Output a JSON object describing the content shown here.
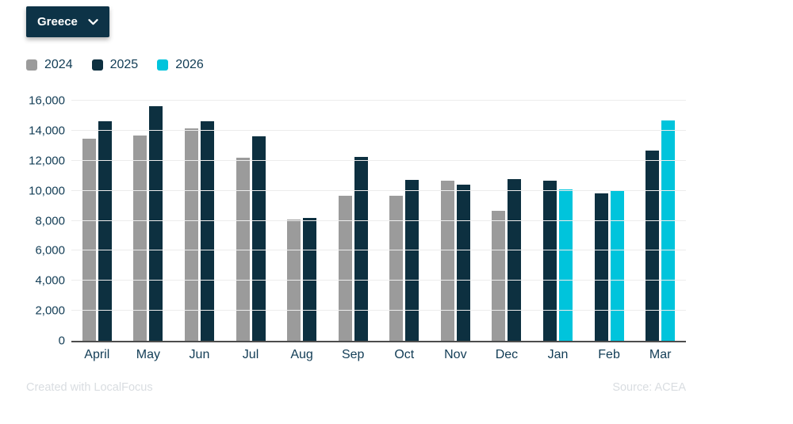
{
  "dropdown": {
    "label": "Greece",
    "icon": "chevron-down-icon"
  },
  "legend": {
    "items": [
      {
        "label": "2024",
        "color": "#9b9b9b"
      },
      {
        "label": "2025",
        "color": "#0d3040"
      },
      {
        "label": "2026",
        "color": "#00c4dc"
      }
    ]
  },
  "footer": {
    "credit": "Created with LocalFocus",
    "source": "Source: ACEA"
  },
  "chart_data": {
    "type": "bar",
    "title": "",
    "xlabel": "",
    "ylabel": "",
    "categories": [
      "April",
      "May",
      "Jun",
      "Jul",
      "Aug",
      "Sep",
      "Oct",
      "Nov",
      "Dec",
      "Jan",
      "Feb",
      "Mar"
    ],
    "series": [
      {
        "name": "2024",
        "color": "#9b9b9b",
        "values": [
          13450,
          13700,
          14150,
          12200,
          8100,
          9650,
          9650,
          10650,
          8650,
          null,
          null,
          null
        ]
      },
      {
        "name": "2025",
        "color": "#0d3040",
        "values": [
          14650,
          15650,
          14650,
          13600,
          8200,
          12250,
          10700,
          10400,
          10750,
          10650,
          9800,
          12700
        ]
      },
      {
        "name": "2026",
        "color": "#00c4dc",
        "values": [
          null,
          null,
          null,
          null,
          null,
          null,
          null,
          null,
          null,
          10100,
          10050,
          14700
        ]
      }
    ],
    "ylim": [
      0,
      16000
    ],
    "ytick_step": 2000,
    "grid": "horizontal",
    "legend_position": "top-left"
  }
}
